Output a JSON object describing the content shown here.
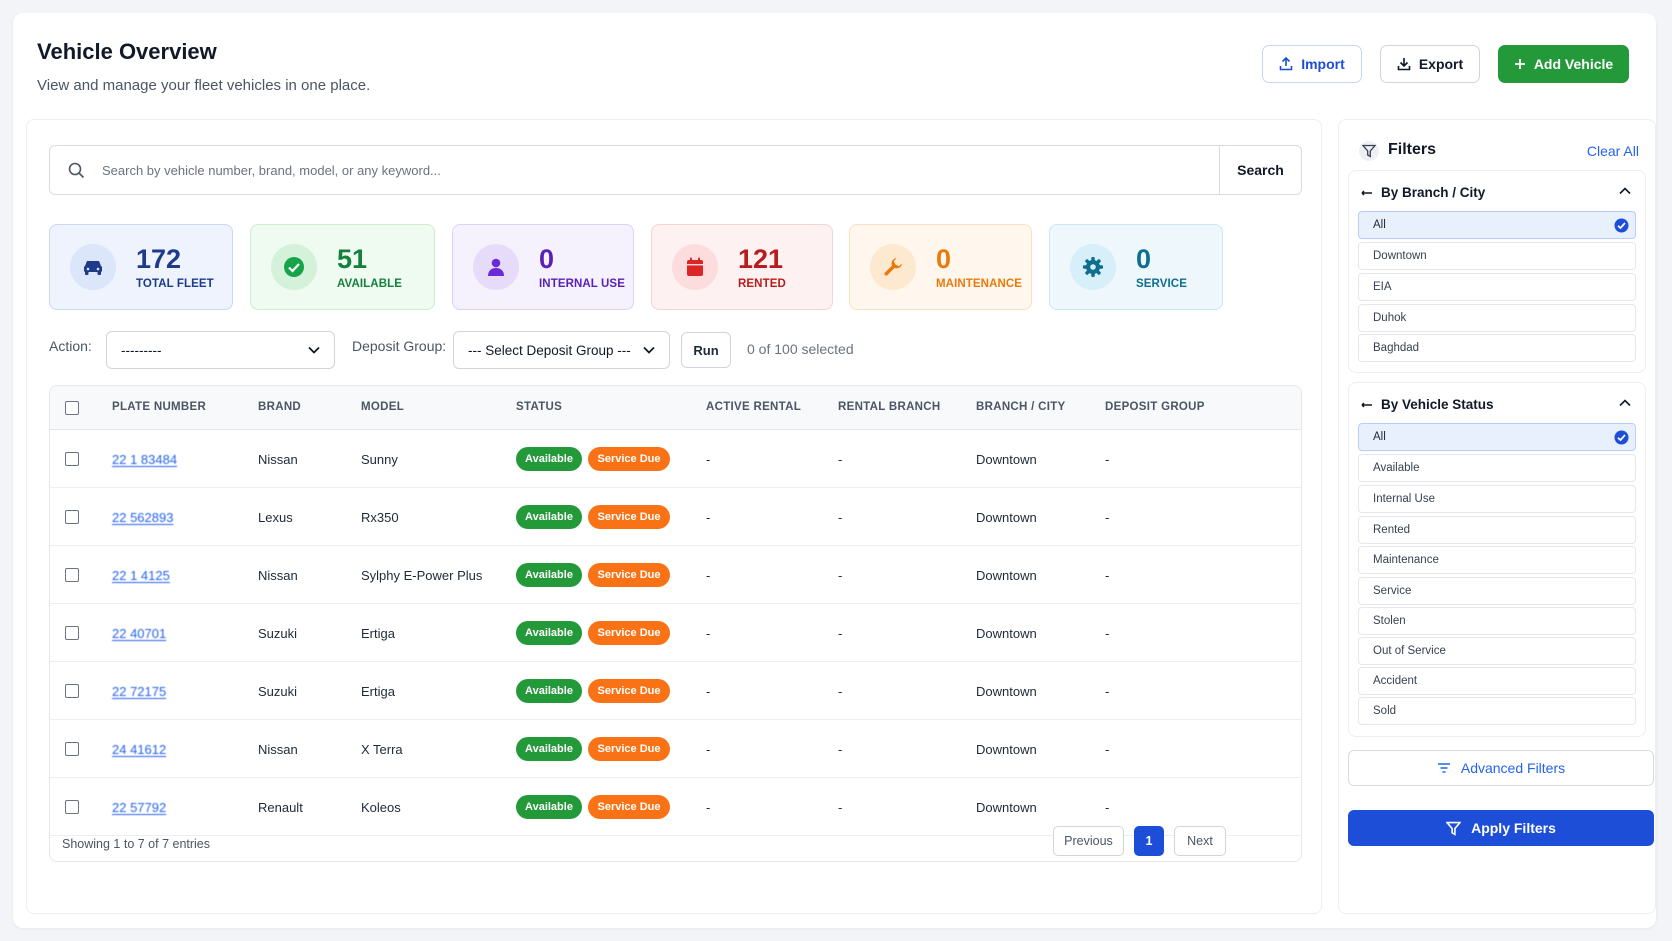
{
  "header": {
    "title": "Vehicle Overview",
    "subtitle": "View and manage your fleet vehicles in one place.",
    "import_label": "Import",
    "export_label": "Export",
    "add_label": "Add Vehicle"
  },
  "search": {
    "placeholder": "Search by vehicle number, brand, model, or any keyword...",
    "button_label": "Search"
  },
  "stats": [
    {
      "value": "172",
      "label": "TOTAL FLEET",
      "icon": "car-icon"
    },
    {
      "value": "51",
      "label": "AVAILABLE",
      "icon": "check-circle-icon"
    },
    {
      "value": "0",
      "label": "INTERNAL USE",
      "icon": "user-icon"
    },
    {
      "value": "121",
      "label": "RENTED",
      "icon": "calendar-icon"
    },
    {
      "value": "0",
      "label": "MAINTENANCE",
      "icon": "wrench-icon"
    },
    {
      "value": "0",
      "label": "SERVICE",
      "icon": "gear-icon"
    }
  ],
  "colors": {
    "accent_blue": "#1d4ed8",
    "green": "#23993a",
    "orange": "#f97316"
  },
  "actions": {
    "action_label": "Action:",
    "action_value": "---------",
    "deposit_label": "Deposit Group:",
    "deposit_value": "--- Select Deposit Group ---",
    "run_label": "Run",
    "selected_text": "0 of 100 selected"
  },
  "table": {
    "columns": [
      "PLATE NUMBER",
      "BRAND",
      "MODEL",
      "STATUS",
      "ACTIVE RENTAL",
      "RENTAL BRANCH",
      "BRANCH / CITY",
      "DEPOSIT GROUP"
    ],
    "rows": [
      {
        "plate": "22 1 83484",
        "brand": "Nissan",
        "model": "Sunny",
        "status": "Available",
        "tag": "Service Due",
        "active_rental": "-",
        "rental_branch": "-",
        "branch_city": "Downtown",
        "deposit_group": "-"
      },
      {
        "plate": "22 562893",
        "brand": "Lexus",
        "model": "Rx350",
        "status": "Available",
        "tag": "Service Due",
        "active_rental": "-",
        "rental_branch": "-",
        "branch_city": "Downtown",
        "deposit_group": "-"
      },
      {
        "plate": "22 1 4125",
        "brand": "Nissan",
        "model": "Sylphy E-Power Plus",
        "status": "Available",
        "tag": "Service Due",
        "active_rental": "-",
        "rental_branch": "-",
        "branch_city": "Downtown",
        "deposit_group": "-"
      },
      {
        "plate": "22 40701",
        "brand": "Suzuki",
        "model": "Ertiga",
        "status": "Available",
        "tag": "Service Due",
        "active_rental": "-",
        "rental_branch": "-",
        "branch_city": "Downtown",
        "deposit_group": "-"
      },
      {
        "plate": "22 72175",
        "brand": "Suzuki",
        "model": "Ertiga",
        "status": "Available",
        "tag": "Service Due",
        "active_rental": "-",
        "rental_branch": "-",
        "branch_city": "Downtown",
        "deposit_group": "-"
      },
      {
        "plate": "24 41612",
        "brand": "Nissan",
        "model": "X Terra",
        "status": "Available",
        "tag": "Service Due",
        "active_rental": "-",
        "rental_branch": "-",
        "branch_city": "Downtown",
        "deposit_group": "-"
      },
      {
        "plate": "22 57792",
        "brand": "Renault",
        "model": "Koleos",
        "status": "Available",
        "tag": "Service Due",
        "active_rental": "-",
        "rental_branch": "-",
        "branch_city": "Downtown",
        "deposit_group": "-"
      }
    ],
    "footer_text": "Showing 1 to 7 of 7 entries",
    "prev_label": "Previous",
    "current_page": "1",
    "next_label": "Next"
  },
  "filters": {
    "title": "Filters",
    "clear_label": "Clear All",
    "branch_group": {
      "title": "By Branch / City",
      "options": [
        "All",
        "Downtown",
        "EIA",
        "Duhok",
        "Baghdad"
      ],
      "selected": "All"
    },
    "status_group": {
      "title": "By Vehicle Status",
      "options": [
        "All",
        "Available",
        "Internal Use",
        "Rented",
        "Maintenance",
        "Service",
        "Stolen",
        "Out of Service",
        "Accident",
        "Sold"
      ],
      "selected": "All"
    },
    "advanced_label": "Advanced Filters",
    "apply_label": "Apply Filters"
  }
}
